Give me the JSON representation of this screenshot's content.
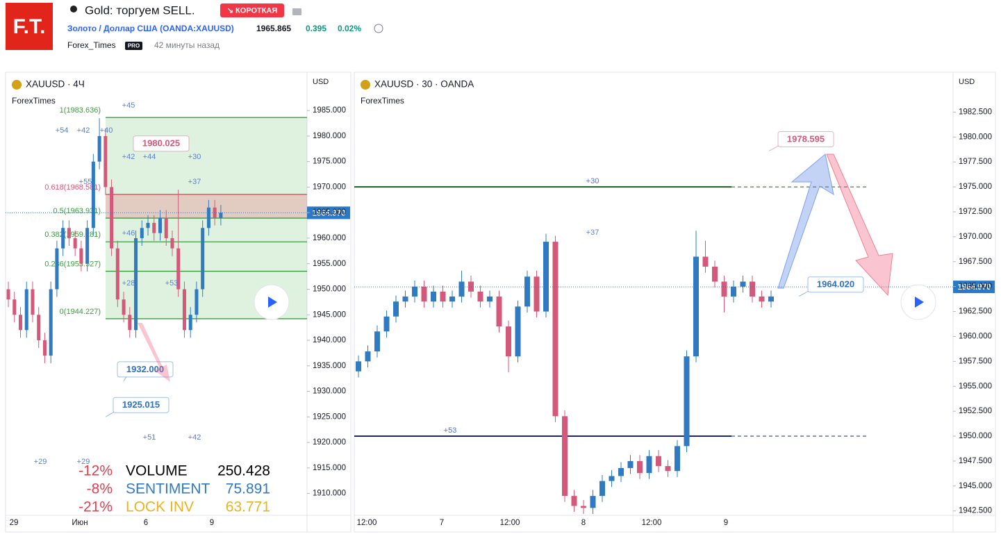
{
  "header": {
    "logo": "F.T.",
    "title": "Gold: торгуем SELL.",
    "badge": "↘ КОРОТКАЯ",
    "symbol": "Золото / Доллар США (OANDA:XAUUSD)",
    "price": "1965.865",
    "change": "0.395",
    "change_pct": "0.02%",
    "author": "Forex_Times",
    "author_badge": "PRO",
    "time": "42 минуты назад"
  },
  "charts": [
    {
      "type": "candlestick",
      "title": "XAUUSD · 4Ч",
      "watermark": "ForexTimes",
      "currency": "USD",
      "up_color": "#2f7ac0",
      "down_color": "#d4587a",
      "ylim": [
        1906,
        1992.5
      ],
      "yticks": [
        {
          "value": 1985,
          "label": "1985.000"
        },
        {
          "value": 1980,
          "label": "1980.000"
        },
        {
          "value": 1975,
          "label": "1975.000"
        },
        {
          "value": 1970,
          "label": "1970.000"
        },
        {
          "value": 1965,
          "label": "1965.000"
        },
        {
          "value": 1960,
          "label": "1960.000"
        },
        {
          "value": 1955,
          "label": "1955.000"
        },
        {
          "value": 1950,
          "label": "1950.000"
        },
        {
          "value": 1945,
          "label": "1945.000"
        },
        {
          "value": 1940,
          "label": "1940.000"
        },
        {
          "value": 1935,
          "label": "1935.000"
        },
        {
          "value": 1930,
          "label": "1930.000"
        },
        {
          "value": 1925,
          "label": "1925.000"
        },
        {
          "value": 1920,
          "label": "1920.000"
        },
        {
          "value": 1915,
          "label": "1915.000"
        },
        {
          "value": 1910,
          "label": "1910.000"
        }
      ],
      "x_labels": [
        "29",
        "Июн",
        "6",
        "9"
      ],
      "last_price": {
        "value": 1964.97,
        "label": "1964.970"
      },
      "candles": [
        [
          1950,
          1951.5,
          1946.5,
          1948
        ],
        [
          1948,
          1949.5,
          1943.5,
          1945
        ],
        [
          1945,
          1946.5,
          1940.5,
          1942
        ],
        [
          1942,
          1951.5,
          1940.5,
          1950
        ],
        [
          1950,
          1951.5,
          1943.5,
          1945
        ],
        [
          1945,
          1946.5,
          1938.5,
          1940
        ],
        [
          1940,
          1941.5,
          1935.5,
          1937
        ],
        [
          1937,
          1951.5,
          1935.5,
          1950
        ],
        [
          1950,
          1959.5,
          1948.5,
          1958
        ],
        [
          1958,
          1963.5,
          1956.5,
          1962
        ],
        [
          1962,
          1963.5,
          1958.5,
          1960
        ],
        [
          1960,
          1961.5,
          1956.5,
          1958
        ],
        [
          1958,
          1959.5,
          1953.5,
          1955
        ],
        [
          1955,
          1963.5,
          1953.5,
          1962
        ],
        [
          1962,
          1976.5,
          1960.5,
          1975
        ],
        [
          1975,
          1983.5,
          1973.5,
          1980
        ],
        [
          1980,
          1981.5,
          1968.5,
          1970
        ],
        [
          1970,
          1971.5,
          1956.5,
          1958
        ],
        [
          1958,
          1959.5,
          1946.5,
          1948
        ],
        [
          1948,
          1949.5,
          1943.5,
          1945
        ],
        [
          1945,
          1946.5,
          1940.5,
          1942
        ],
        [
          1942,
          1961.5,
          1940.5,
          1960
        ],
        [
          1960,
          1963.5,
          1958.5,
          1962
        ],
        [
          1962,
          1964.5,
          1960.5,
          1963
        ],
        [
          1963,
          1964.5,
          1959.5,
          1961
        ],
        [
          1961,
          1965.5,
          1959.5,
          1964
        ],
        [
          1964,
          1965.5,
          1958.5,
          1960
        ],
        [
          1960,
          1961.5,
          1956.5,
          1958
        ],
        [
          1958,
          1969.5,
          1948.5,
          1950
        ],
        [
          1950,
          1951.5,
          1940.5,
          1942
        ],
        [
          1942,
          1946.5,
          1940.5,
          1945
        ],
        [
          1945,
          1951.5,
          1943.5,
          1950
        ],
        [
          1950,
          1963.5,
          1948.5,
          1962
        ],
        [
          1962,
          1967.5,
          1960.5,
          1966
        ],
        [
          1966,
          1967.5,
          1962.5,
          1964
        ],
        [
          1964,
          1966.5,
          1962.5,
          1965
        ]
      ],
      "fib_levels": [
        {
          "label": "1(1983.636)",
          "value": 1983.636
        },
        {
          "label": "0.618(1968.581)",
          "value": 1968.581
        },
        {
          "label": "0.5(1963.931)",
          "value": 1963.931
        },
        {
          "label": "0.382(1959.281)",
          "value": 1959.281
        },
        {
          "label": "0.236(1953.527)",
          "value": 1953.527
        },
        {
          "label": "0(1944.227)",
          "value": 1944.227
        }
      ],
      "callouts": [
        {
          "value": 1980.025,
          "label": "1980.025",
          "color": "#d4587a"
        },
        {
          "value": 1932,
          "label": "1932.000",
          "color": "#2f6fc0"
        },
        {
          "value": 1925.015,
          "label": "1925.015",
          "color": "#2f6fc0"
        }
      ],
      "annotations": [
        "+54",
        "+42",
        "+40",
        "+45",
        "+42",
        "+44",
        "+30",
        "+37",
        "+55",
        "+46",
        "+28",
        "+53",
        "+51",
        "+42",
        "+29",
        "+29"
      ]
    },
    {
      "type": "candlestick",
      "title": "XAUUSD · 30 · OANDA",
      "watermark": "ForexTimes",
      "currency": "USD",
      "up_color": "#2f7ac0",
      "down_color": "#d4587a",
      "ylim": [
        1942.2,
        1986.5
      ],
      "yticks": [
        {
          "value": 1982.5,
          "label": "1982.500"
        },
        {
          "value": 1980,
          "label": "1980.000"
        },
        {
          "value": 1977.5,
          "label": "1977.500"
        },
        {
          "value": 1975,
          "label": "1975.000"
        },
        {
          "value": 1972.5,
          "label": "1972.500"
        },
        {
          "value": 1970,
          "label": "1970.000"
        },
        {
          "value": 1967.5,
          "label": "1967.500"
        },
        {
          "value": 1965,
          "label": "1965.000"
        },
        {
          "value": 1962.5,
          "label": "1962.500"
        },
        {
          "value": 1960,
          "label": "1960.000"
        },
        {
          "value": 1957.5,
          "label": "1957.500"
        },
        {
          "value": 1955,
          "label": "1955.000"
        },
        {
          "value": 1952.5,
          "label": "1952.500"
        },
        {
          "value": 1950,
          "label": "1950.000"
        },
        {
          "value": 1947.5,
          "label": "1947.500"
        },
        {
          "value": 1945,
          "label": "1945.000"
        },
        {
          "value": 1942.5,
          "label": "1942.500"
        }
      ],
      "x_labels": [
        "12:00",
        "7",
        "12:00",
        "8",
        "12:00",
        "9"
      ],
      "last_price": {
        "value": 1964.97,
        "label": "1964.970"
      },
      "candles": [
        [
          1956.5,
          1958.1,
          1955.9,
          1957.5
        ],
        [
          1957.5,
          1959.1,
          1956.9,
          1958.5
        ],
        [
          1958.5,
          1961.1,
          1957.9,
          1960.5
        ],
        [
          1960.5,
          1962.6,
          1959.9,
          1962
        ],
        [
          1962,
          1964.1,
          1961.4,
          1963.5
        ],
        [
          1963.5,
          1964.6,
          1962.9,
          1964
        ],
        [
          1964,
          1965.6,
          1963.4,
          1965
        ],
        [
          1965,
          1965.6,
          1962.9,
          1963.5
        ],
        [
          1963.5,
          1965.1,
          1962.9,
          1964.5
        ],
        [
          1964.5,
          1965.1,
          1962.9,
          1963.5
        ],
        [
          1963.5,
          1964.6,
          1962.9,
          1964
        ],
        [
          1964,
          1966.6,
          1963.4,
          1965.5
        ],
        [
          1965.5,
          1966.1,
          1963.9,
          1964.5
        ],
        [
          1964.5,
          1965.1,
          1962.9,
          1963.5
        ],
        [
          1963.5,
          1964.6,
          1962.9,
          1964
        ],
        [
          1964,
          1964.6,
          1960.4,
          1961
        ],
        [
          1961,
          1961.6,
          1956.4,
          1958
        ],
        [
          1958,
          1963.6,
          1957.4,
          1963
        ],
        [
          1963,
          1966.6,
          1962.4,
          1966
        ],
        [
          1966,
          1966.6,
          1961.9,
          1962.5
        ],
        [
          1962.5,
          1970.3,
          1961.9,
          1969.5
        ],
        [
          1969.5,
          1970.1,
          1951.4,
          1952
        ],
        [
          1952,
          1952.6,
          1943.4,
          1944
        ],
        [
          1944,
          1944.6,
          1942.4,
          1943
        ],
        [
          1943,
          1943.6,
          1942.2,
          1942.8
        ],
        [
          1942.8,
          1944.6,
          1942.2,
          1944
        ],
        [
          1944,
          1946.1,
          1943.4,
          1945.5
        ],
        [
          1945.5,
          1946.6,
          1944.9,
          1946
        ],
        [
          1946,
          1947.4,
          1945.4,
          1946.8
        ],
        [
          1946.8,
          1948.1,
          1946.2,
          1947.5
        ],
        [
          1947.5,
          1948.1,
          1945.7,
          1946.3
        ],
        [
          1946.3,
          1948.6,
          1945.7,
          1948
        ],
        [
          1948,
          1948.6,
          1946.4,
          1947
        ],
        [
          1947,
          1947.6,
          1945.9,
          1946.5
        ],
        [
          1946.5,
          1949.6,
          1945.9,
          1949
        ],
        [
          1949,
          1958.6,
          1948.4,
          1958
        ],
        [
          1958,
          1970.6,
          1957.4,
          1968
        ],
        [
          1968,
          1969.6,
          1966.4,
          1967
        ],
        [
          1967,
          1967.6,
          1964.9,
          1965.5
        ],
        [
          1965.5,
          1966.1,
          1962.4,
          1964
        ],
        [
          1964,
          1965.6,
          1963.4,
          1965
        ],
        [
          1965,
          1966.1,
          1964.4,
          1965.5
        ],
        [
          1965.5,
          1966.1,
          1963.4,
          1964
        ],
        [
          1964,
          1964.6,
          1962.9,
          1963.5
        ],
        [
          1963.5,
          1964.6,
          1962.9,
          1964
        ]
      ],
      "levels": [
        {
          "label": "+30",
          "value": 1975,
          "color": "#1b5e20"
        },
        {
          "label": "+53",
          "value": 1950,
          "color": "#1a237e"
        }
      ],
      "callouts": [
        {
          "value": 1978.595,
          "label": "1978.595",
          "color": "#d4587a"
        },
        {
          "value": 1964.02,
          "label": "1964.020",
          "color": "#2f6fc0"
        }
      ],
      "annotations": [
        "+37"
      ]
    }
  ],
  "stats": [
    {
      "pct": "-12%",
      "name": "VOLUME",
      "value": "250.428",
      "color": "#000000"
    },
    {
      "pct": "-8%",
      "name": "SENTIMENT",
      "value": "75.891",
      "color": "#2f7ac0"
    },
    {
      "pct": "-21%",
      "name": "LOCK INV",
      "value": "63.771",
      "color": "#e6b422"
    }
  ]
}
